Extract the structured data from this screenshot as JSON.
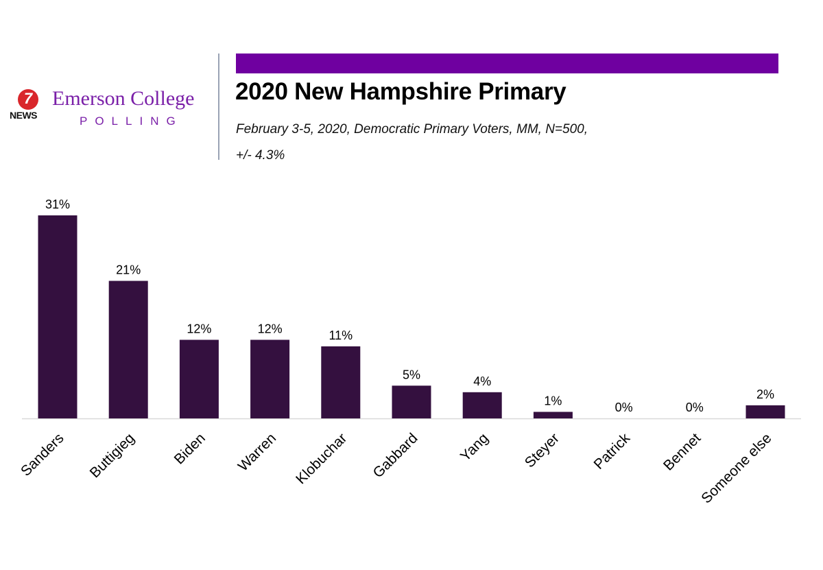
{
  "header": {
    "logo_number": "7",
    "logo_news": "NEWS",
    "college_name": "Emerson College",
    "polling_label": "POLLING",
    "title": "2020 New Hampshire Primary",
    "subtitle_line1": "February 3-5, 2020, Democratic Primary Voters, MM,  N=500,",
    "subtitle_line2": "+/-  4.3%"
  },
  "colors": {
    "bar": "#34103f",
    "accent": "#6f00a0",
    "brand_text": "#7a1fa8",
    "logo_red": "#d9262b"
  },
  "icons": {
    "logo": "channel-7-news-logo"
  },
  "chart_data": {
    "type": "bar",
    "title": "2020 New Hampshire Primary",
    "categories": [
      "Sanders",
      "Buttigieg",
      "Biden",
      "Warren",
      "Klobuchar",
      "Gabbard",
      "Yang",
      "Steyer",
      "Patrick",
      "Bennet",
      "Someone else"
    ],
    "values": [
      31,
      21,
      12,
      12,
      11,
      5,
      4,
      1,
      0,
      0,
      2
    ],
    "value_labels": [
      "31%",
      "21%",
      "12%",
      "12%",
      "11%",
      "5%",
      "4%",
      "1%",
      "0%",
      "0%",
      "2%"
    ],
    "unit": "%",
    "xlabel": "",
    "ylabel": "",
    "ylim": [
      0,
      31
    ],
    "grid": false,
    "legend": "none"
  }
}
